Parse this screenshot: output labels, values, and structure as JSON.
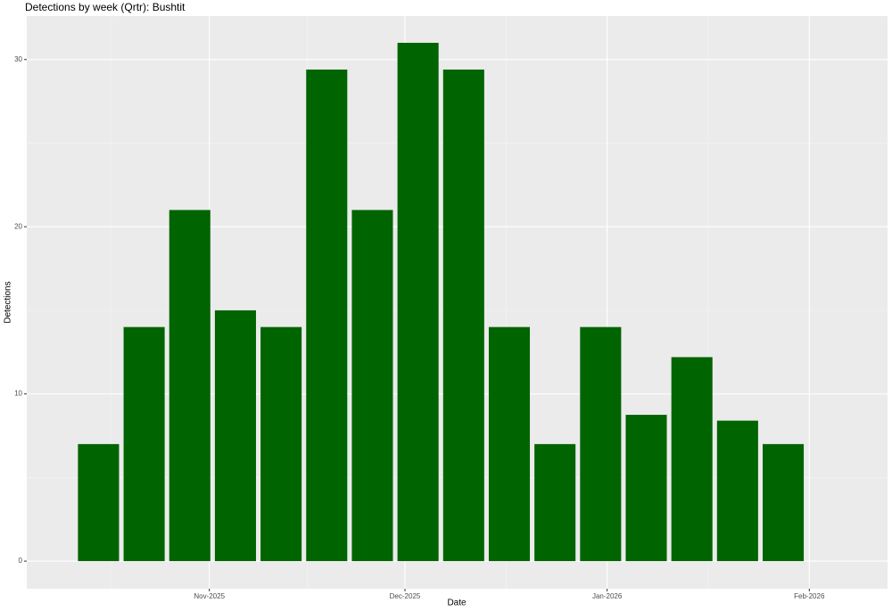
{
  "chart_data": {
    "type": "bar",
    "title": "Detections by week (Qrtr): Bushtit",
    "x_label": "Date",
    "y_label": "Detections",
    "x": [
      "2025-10-15",
      "2025-10-22",
      "2025-10-29",
      "2025-11-05",
      "2025-11-12",
      "2025-11-19",
      "2025-11-26",
      "2025-12-03",
      "2025-12-10",
      "2025-12-17",
      "2025-12-24",
      "2025-12-31",
      "2026-01-07",
      "2026-01-14",
      "2026-01-21",
      "2026-01-28"
    ],
    "values": [
      7,
      14,
      21,
      15,
      14,
      29.4,
      21,
      31,
      29.4,
      14,
      7,
      14,
      8.75,
      12.2,
      8.4,
      7
    ],
    "color": "#006400",
    "xlim": [
      "2025-10-04",
      "2026-02-13"
    ],
    "xticks": [
      {
        "value": "2025-11-01",
        "label": "Nov-2025"
      },
      {
        "value": "2025-12-01",
        "label": "Dec-2025"
      },
      {
        "value": "2026-01-01",
        "label": "Jan-2026"
      },
      {
        "value": "2026-02-01",
        "label": "Feb-2026"
      }
    ],
    "ylim": [
      -1.65,
      32.6
    ],
    "yticks": [
      0,
      10,
      20,
      30
    ],
    "grid": true
  }
}
